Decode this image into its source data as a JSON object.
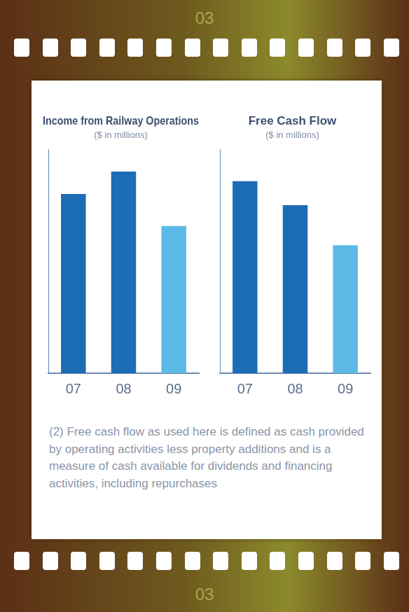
{
  "frame_labels": [
    "03",
    "03"
  ],
  "footnote": "(2) Free cash flow as used here is defined as cash provided by operating activities less property additions and is a measure of cash available for dividends and financing activities, including repurchases",
  "chart_data": [
    {
      "type": "bar",
      "title": "Income from Railway Operations",
      "subtitle": "($ in millions)",
      "categories": [
        "07",
        "08",
        "09"
      ],
      "values": [
        2800,
        3150,
        2300
      ],
      "colors": [
        "#1c6db5",
        "#1c6db5",
        "#5cb9e6"
      ],
      "ylim": [
        0,
        3500
      ],
      "grid": false,
      "tick_labels": "x"
    },
    {
      "type": "bar",
      "title": "Free Cash Flow",
      "subtitle": "($ in millions)",
      "categories": [
        "07",
        "08",
        "09"
      ],
      "values": [
        1200,
        1050,
        800
      ],
      "colors": [
        "#1c6db5",
        "#1c6db5",
        "#5cb9e6"
      ],
      "ylim": [
        0,
        1400
      ],
      "grid": false,
      "tick_labels": "x"
    }
  ]
}
